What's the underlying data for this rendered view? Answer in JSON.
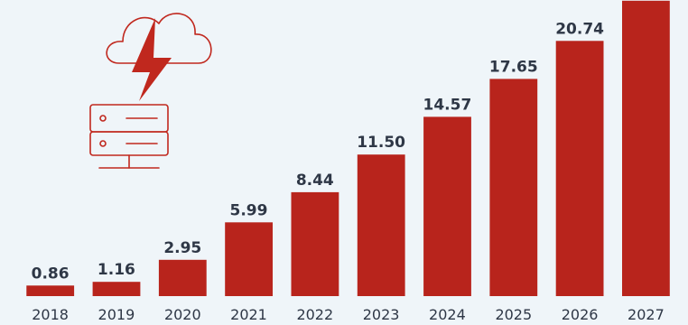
{
  "chart_data": {
    "type": "bar",
    "categories": [
      "2018",
      "2019",
      "2020",
      "2021",
      "2022",
      "2023",
      "2024",
      "2025",
      "2026",
      "2027"
    ],
    "values": [
      0.86,
      1.16,
      2.95,
      5.99,
      8.44,
      11.5,
      14.57,
      17.65,
      20.74,
      24.0
    ],
    "value_labels": [
      "0.86",
      "1.16",
      "2.95",
      "5.99",
      "8.44",
      "11.50",
      "14.57",
      "17.65",
      "20.74",
      ""
    ],
    "title": "",
    "xlabel": "",
    "ylabel": "",
    "ylim": [
      0,
      24.5
    ],
    "grid": false,
    "bar_color": "#b8241c"
  },
  "decoration": {
    "icon": "cloud-lightning-server-icon",
    "color": "#c0281e"
  }
}
